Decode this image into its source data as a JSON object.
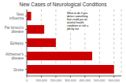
{
  "chart_data": {
    "type": "bar",
    "orientation": "horizontal",
    "title": "New Cases of Neurological Conditions",
    "categories": [
      "New influenza",
      "Par kinson's disease",
      "Epilepsy",
      "Alzheimer's disease",
      "Stroke"
    ],
    "values": [
      30000,
      120000,
      200000,
      450000,
      600000
    ],
    "color": "#cc0000",
    "xlim": [
      0,
      650000
    ],
    "xticks": [
      0,
      {
        "value": 100000,
        "label": "100,000"
      },
      {
        "value": 200000,
        "label": "200,000"
      },
      {
        "value": 300000,
        "label": "300,000"
      },
      {
        "value": 400000,
        "label": "400,000"
      },
      {
        "value": 500000,
        "label": "500,000"
      },
      {
        "value": 600000,
        "label": "600,000"
      }
    ],
    "grid": true,
    "annotation": "What to do if you\ndetect something\nthat could put an\nalcohol health\ncondition at risk a\njob by out"
  }
}
